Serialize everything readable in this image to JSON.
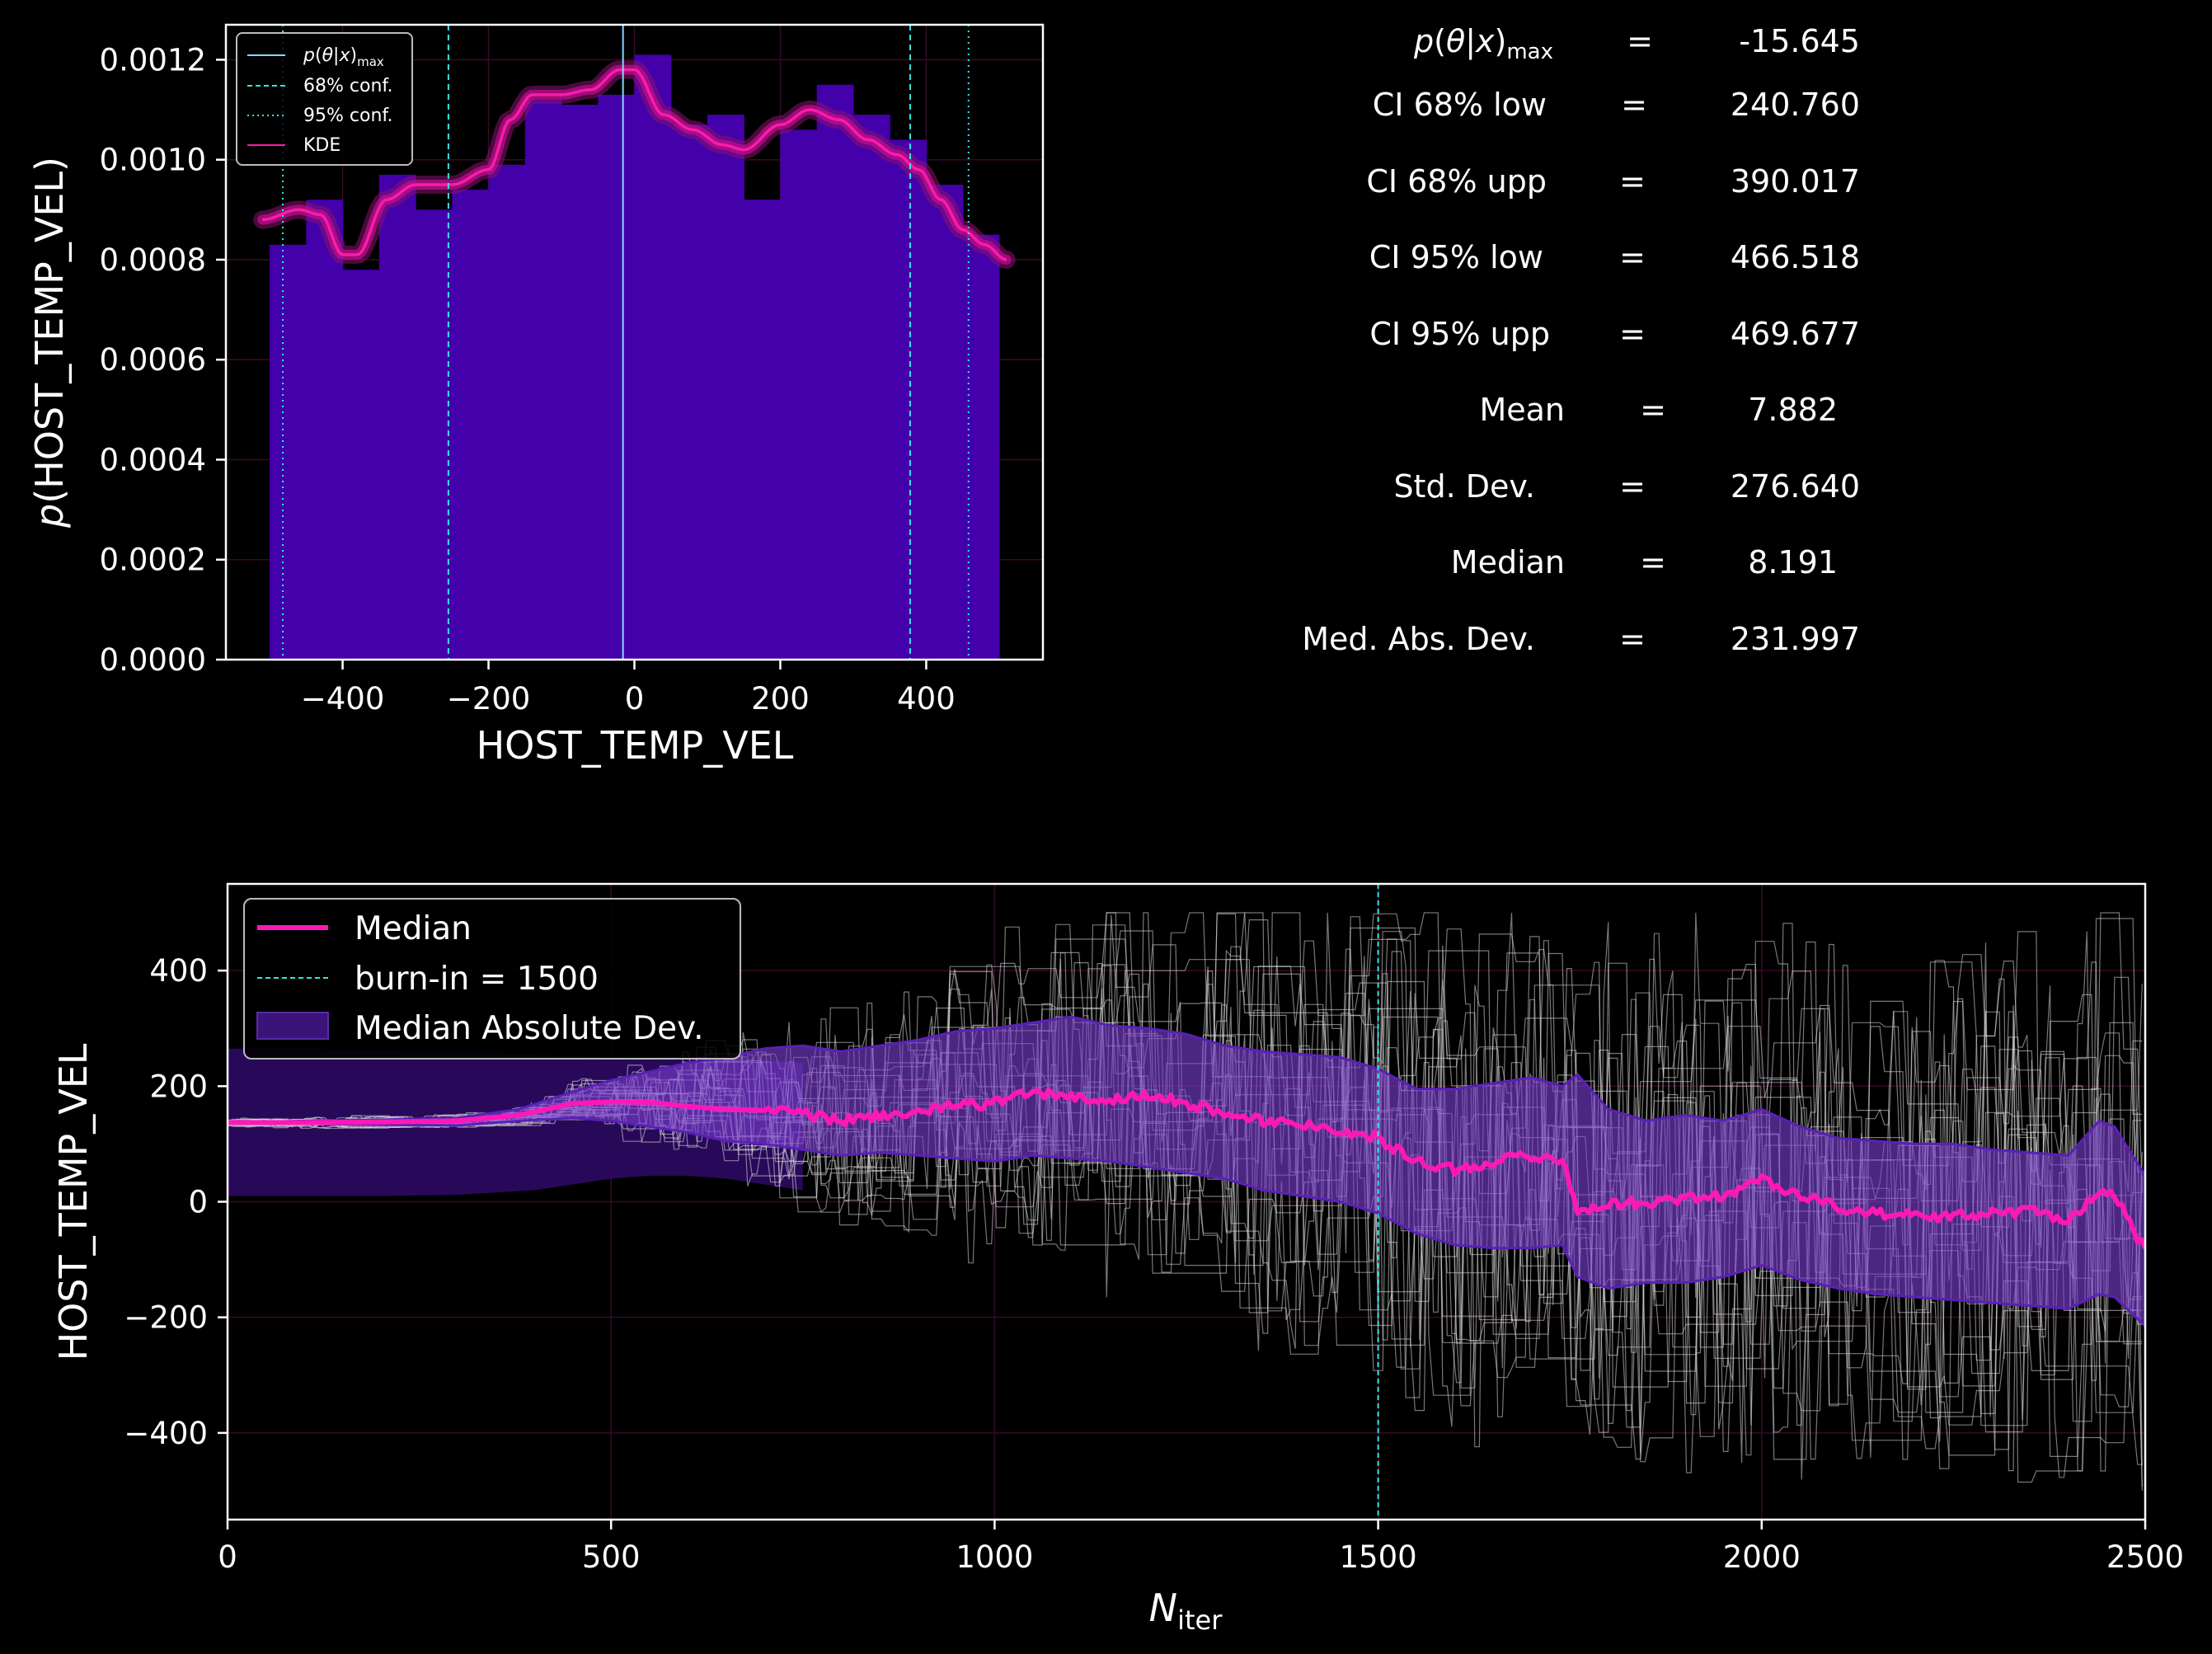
{
  "colors": {
    "background": "#000000",
    "hist_bar": "#4400aa",
    "kde": "#ff1aa8",
    "map_line": "#7fdcff",
    "conf_line": "#33e6e6",
    "median_line": "#ff18b8",
    "mad_band": "#7b3fd0",
    "outer_band": "#2a0a5e",
    "walkers": "#d8d8d8",
    "axes": "#ffffff"
  },
  "chart_data": [
    {
      "type": "bar",
      "panel": "posterior-histogram",
      "xlabel": "HOST_TEMP_VEL",
      "ylabel": "p(HOST_TEMP_VEL)",
      "xlim": [
        -560,
        560
      ],
      "ylim": [
        0,
        0.00127
      ],
      "xticks": [
        "−400",
        "−200",
        "0",
        "200",
        "400"
      ],
      "xtick_values": [
        -400,
        -200,
        0,
        200,
        400
      ],
      "yticks": [
        "0.0000",
        "0.0002",
        "0.0004",
        "0.0006",
        "0.0008",
        "0.0010",
        "0.0012"
      ],
      "ytick_values": [
        0,
        0.0002,
        0.0004,
        0.0006,
        0.0008,
        0.001,
        0.0012
      ],
      "bin_edges": [
        -500,
        -450,
        -400,
        -350,
        -300,
        -250,
        -200,
        -150,
        -100,
        -50,
        0,
        50,
        100,
        150,
        200,
        250,
        300,
        350,
        400,
        450,
        500
      ],
      "bin_values": [
        0.00083,
        0.00092,
        0.00078,
        0.00097,
        0.0009,
        0.00094,
        0.00099,
        0.00112,
        0.00111,
        0.00113,
        0.00121,
        0.00107,
        0.00109,
        0.00092,
        0.00106,
        0.00115,
        0.00109,
        0.00104,
        0.00095,
        0.00085
      ],
      "kde": {
        "x": [
          -510,
          -460,
          -430,
          -400,
          -380,
          -340,
          -300,
          -250,
          -200,
          -170,
          -140,
          -100,
          -60,
          -20,
          0,
          40,
          80,
          120,
          150,
          200,
          240,
          280,
          320,
          360,
          390,
          420,
          450,
          480,
          510
        ],
        "y": [
          0.00088,
          0.0009,
          0.00089,
          0.00081,
          0.00081,
          0.00092,
          0.00095,
          0.00095,
          0.00098,
          0.00108,
          0.00113,
          0.00113,
          0.00114,
          0.00118,
          0.00118,
          0.00109,
          0.00106,
          0.00103,
          0.00102,
          0.00107,
          0.0011,
          0.00108,
          0.00104,
          0.00101,
          0.00098,
          0.00092,
          0.00086,
          0.00083,
          0.0008
        ]
      },
      "map_x": -15.645,
      "conf68": [
        -255,
        378
      ],
      "conf95": [
        -482,
        458
      ],
      "legend": {
        "placement": "upper left",
        "map_label": "p(θ|x)max",
        "conf68_label": "68% conf.",
        "conf95_label": "95% conf.",
        "kde_label": "KDE"
      },
      "grid": true
    },
    {
      "type": "line",
      "panel": "trace",
      "xlabel": "N",
      "xlabel_sub": "iter",
      "ylabel": "HOST_TEMP_VEL",
      "xlim": [
        0,
        2500
      ],
      "ylim": [
        -550,
        550
      ],
      "xticks": [
        "0",
        "500",
        "1000",
        "1500",
        "2000",
        "2500"
      ],
      "xtick_values": [
        0,
        500,
        1000,
        1500,
        2000,
        2500
      ],
      "yticks": [
        "−400",
        "−200",
        "0",
        "200",
        "400"
      ],
      "ytick_values": [
        -400,
        -200,
        0,
        200,
        400
      ],
      "burn_in": 1500,
      "median": {
        "x": [
          0,
          100,
          200,
          300,
          380,
          450,
          500,
          550,
          600,
          650,
          700,
          750,
          800,
          850,
          900,
          950,
          1000,
          1050,
          1100,
          1150,
          1200,
          1250,
          1300,
          1350,
          1400,
          1450,
          1500,
          1550,
          1600,
          1650,
          1700,
          1740,
          1760,
          1800,
          1850,
          1900,
          1950,
          2000,
          2050,
          2100,
          2150,
          2200,
          2250,
          2300,
          2350,
          2400,
          2440,
          2460,
          2500
        ],
        "y": [
          137,
          137,
          138,
          140,
          150,
          170,
          173,
          172,
          165,
          160,
          158,
          152,
          140,
          150,
          155,
          165,
          172,
          190,
          180,
          175,
          185,
          170,
          155,
          140,
          135,
          125,
          110,
          70,
          55,
          70,
          80,
          72,
          -15,
          -5,
          0,
          5,
          10,
          40,
          10,
          -10,
          -20,
          -25,
          -25,
          -20,
          -15,
          -30,
          15,
          10,
          -85
        ]
      },
      "mad_upper": [
        137,
        140,
        142,
        145,
        160,
        190,
        210,
        225,
        240,
        250,
        265,
        270,
        260,
        270,
        280,
        295,
        300,
        310,
        320,
        305,
        300,
        290,
        270,
        260,
        255,
        250,
        230,
        195,
        195,
        205,
        215,
        200,
        220,
        160,
        140,
        150,
        140,
        160,
        130,
        110,
        105,
        100,
        100,
        90,
        85,
        80,
        140,
        130,
        45
      ],
      "mad_lower": [
        137,
        135,
        133,
        132,
        140,
        145,
        140,
        130,
        120,
        105,
        100,
        90,
        80,
        85,
        80,
        75,
        70,
        80,
        75,
        70,
        60,
        50,
        40,
        20,
        10,
        0,
        -20,
        -55,
        -75,
        -80,
        -80,
        -75,
        -130,
        -150,
        -140,
        -140,
        -130,
        -110,
        -135,
        -150,
        -160,
        -165,
        -170,
        -175,
        -180,
        -185,
        -160,
        -165,
        -215
      ],
      "outer_upper": [
        265,
        265,
        262,
        260,
        255,
        250,
        250,
        255,
        250,
        245,
        240
      ],
      "outer_lower": [
        10,
        10,
        10,
        12,
        20,
        40,
        45,
        45,
        40,
        30,
        20
      ],
      "outer_x": [
        0,
        100,
        200,
        300,
        400,
        500,
        550,
        600,
        650,
        700,
        750
      ],
      "legend": {
        "placement": "upper left",
        "median_label": "Median",
        "burnin_label": "burn-in = 1500",
        "mad_label": "Median Absolute Dev."
      },
      "grid": true
    }
  ],
  "stats": [
    {
      "label": "p(θ|x)max",
      "eq": "=",
      "value": "-15.645"
    },
    {
      "label": "CI 68% low",
      "eq": "=",
      "value": "240.760"
    },
    {
      "label": "CI 68% upp",
      "eq": "=",
      "value": "390.017"
    },
    {
      "label": "CI 95% low",
      "eq": "=",
      "value": "466.518"
    },
    {
      "label": "CI 95% upp",
      "eq": "=",
      "value": "469.677"
    },
    {
      "label": "Mean",
      "eq": "=",
      "value": "7.882"
    },
    {
      "label": "Std. Dev.",
      "eq": "=",
      "value": "276.640"
    },
    {
      "label": "Median",
      "eq": "=",
      "value": "8.191"
    },
    {
      "label": "Med. Abs. Dev.",
      "eq": "=",
      "value": "231.997"
    }
  ]
}
